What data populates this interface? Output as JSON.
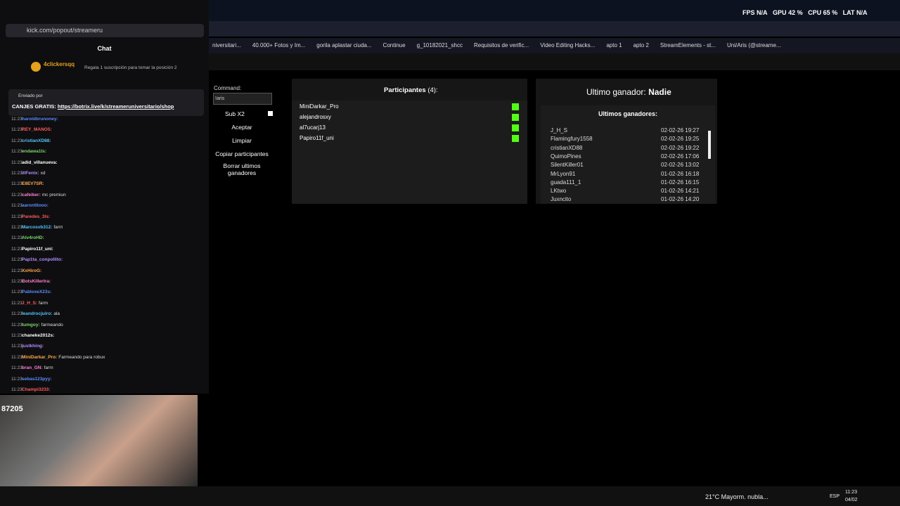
{
  "overlay": {
    "fps_label": "FPS",
    "fps": "N/A",
    "gpu_label": "GPU",
    "gpu": "42 %",
    "cpu_label": "CPU",
    "cpu": "65 %",
    "lat_label": "LAT",
    "lat": "N/A"
  },
  "bookmarks": [
    "niversitari...",
    "40.000+ Fotos y Im...",
    "gorila aplastar ciuda...",
    "Continue",
    "g_10182021_shcc",
    "Requisitos de verific...",
    "Video Editing Hacks...",
    "apto 1",
    "apto 2",
    "StreamElements - st...",
    "Uni/Aris (@streame..."
  ],
  "popup": {
    "url": "kick.com/popout/streameru",
    "title": "Chat",
    "top_gifter": {
      "name": "4clickersqq",
      "text": "Regala 1 suscripción para tomar la posición 2"
    },
    "pinned": {
      "label": "Enviado por",
      "text": "CANJES GRATIS:",
      "link": "https://botrix.live/k/streameruniversitario/shop"
    },
    "messages": [
      {
        "time": "11:23",
        "user": "haroldbrunoney:"
      },
      {
        "time": "11:23",
        "user": "REY_MANO5:"
      },
      {
        "time": "11:23",
        "user": "cristianXD88:"
      },
      {
        "time": "11:23",
        "user": "endawa1ls:"
      },
      {
        "time": "11:23",
        "user": "adid_villanueva:"
      },
      {
        "time": "11:23",
        "user": "illFenix:",
        "text": "xd"
      },
      {
        "time": "11:23",
        "user": "E8EV7SR:"
      },
      {
        "time": "11:23",
        "user": "cafeiker:",
        "text": "mc premiun"
      },
      {
        "time": "11:23",
        "user": "aarontitooo:"
      },
      {
        "time": "11:23",
        "user": "Paredes_3ls:"
      },
      {
        "time": "11:23",
        "user": "Marcosvb312:",
        "text": "farm"
      },
      {
        "time": "11:23",
        "user": "Alv4roHD:"
      },
      {
        "time": "11:23",
        "user": "Papiro11f_uni:"
      },
      {
        "time": "11:23",
        "user": "Pap1ta_conpollito:"
      },
      {
        "time": "11:23",
        "user": "XxHiroG:"
      },
      {
        "time": "11:23",
        "user": "BotsKillertra:"
      },
      {
        "time": "11:23",
        "user": "PabloxeX23s:"
      },
      {
        "time": "11:23",
        "user": "J_H_S:",
        "text": "farm"
      },
      {
        "time": "11:23",
        "user": "leandrocjuiro:",
        "text": "ala"
      },
      {
        "time": "11:23",
        "user": "tumgoy:",
        "text": "farmeando"
      },
      {
        "time": "11:23",
        "user": "chaneke2012s:"
      },
      {
        "time": "11:23",
        "user": "justkhing:"
      },
      {
        "time": "11:23",
        "user": "MiniDarkar_Pro:",
        "text": "Farmeando para robux"
      },
      {
        "time": "11:23",
        "user": "bran_GN:",
        "text": "farm"
      },
      {
        "time": "11:23",
        "user": "sebas123pyy:"
      },
      {
        "time": "11:23",
        "user": "Champi3233:"
      }
    ],
    "viewers": "87205"
  },
  "command": {
    "label": "Command:",
    "input": "!aris",
    "sub": "Sub X2",
    "buttons": [
      "Aceptar",
      "Limpiar",
      "Copiar participantes",
      "Borrar ultimos ganadores"
    ]
  },
  "participants": {
    "title": "Participantes",
    "count": "(4):",
    "names": [
      "MiniDarkar_Pro",
      "alejandrosxy",
      "al7ucarj13",
      "Papiro11f_uni"
    ]
  },
  "winner": {
    "label": "Ultimo ganador:",
    "name": "Nadie"
  },
  "recent": {
    "title": "Ultimos ganadores:",
    "rows": [
      [
        "J_H_S",
        "02-02-26 19:27"
      ],
      [
        "Flamingfury1558",
        "02-02-26 19:25"
      ],
      [
        "cristianXD88",
        "02-02-26 19:22"
      ],
      [
        "QuimoPines",
        "02-02-26 17:06"
      ],
      [
        "SilentKiller01",
        "02-02-26 13:02"
      ],
      [
        "MrLyon91",
        "01-02-26 16:18"
      ],
      [
        "guada111_1",
        "01-02-26 16:15"
      ],
      [
        "LKtwo",
        "01-02-26 14:21"
      ],
      [
        "Juxncito",
        "01-02-26 14:20"
      ]
    ]
  },
  "taskbar": {
    "weather": "21°C Mayorm. nubla...",
    "lang": "ESP",
    "time": "11:23",
    "date": "04/02"
  }
}
